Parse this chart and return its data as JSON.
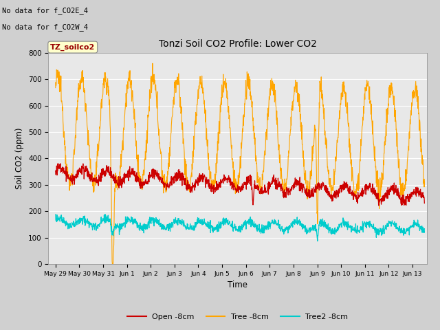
{
  "title": "Tonzi Soil CO2 Profile: Lower CO2",
  "xlabel": "Time",
  "ylabel": "Soil CO2 (ppm)",
  "ylim": [
    0,
    800
  ],
  "yticks": [
    0,
    100,
    200,
    300,
    400,
    500,
    600,
    700,
    800
  ],
  "bg_color": "#d0d0d0",
  "plot_bg_color": "#e8e8e8",
  "note1": "No data for f_CO2E_4",
  "note2": "No data for f_CO2W_4",
  "legend_label": "TZ_soilco2",
  "legend_entries": [
    "Open -8cm",
    "Tree -8cm",
    "Tree2 -8cm"
  ],
  "legend_colors": [
    "#cc0000",
    "#ffa500",
    "#00cccc"
  ],
  "line_colors": {
    "open": "#cc0000",
    "tree": "#ffa500",
    "tree2": "#00cccc"
  },
  "xtick_labels": [
    "May 29",
    "May 30",
    "May 31",
    "Jun 1",
    "Jun 2",
    "Jun 3",
    "Jun 4",
    "Jun 5",
    "Jun 6",
    "Jun 7",
    "Jun 8",
    "Jun 9",
    "Jun 10",
    "Jun 11",
    "Jun 12",
    "Jun 13"
  ],
  "xtick_positions": [
    0,
    1,
    2,
    3,
    4,
    5,
    6,
    7,
    8,
    9,
    10,
    11,
    12,
    13,
    14,
    15
  ]
}
